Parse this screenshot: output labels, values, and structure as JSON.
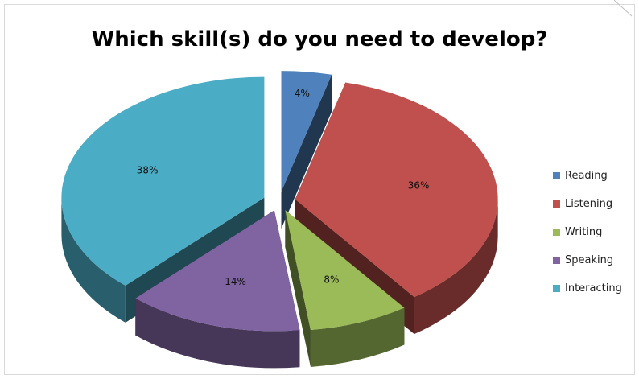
{
  "chart_data": {
    "type": "pie",
    "title": "Which skill(s) do you need to develop?",
    "categories": [
      "Reading",
      "Listening",
      "Writing",
      "Speaking",
      "Interacting"
    ],
    "values": [
      4,
      36,
      8,
      14,
      38
    ],
    "labels": [
      "4%",
      "36%",
      "8%",
      "14%",
      "38%"
    ],
    "colors": [
      "#4f81bd",
      "#c0504d",
      "#9bbb59",
      "#8064a2",
      "#4bacc6"
    ],
    "legend_position": "right",
    "exploded": true,
    "three_d": true
  }
}
